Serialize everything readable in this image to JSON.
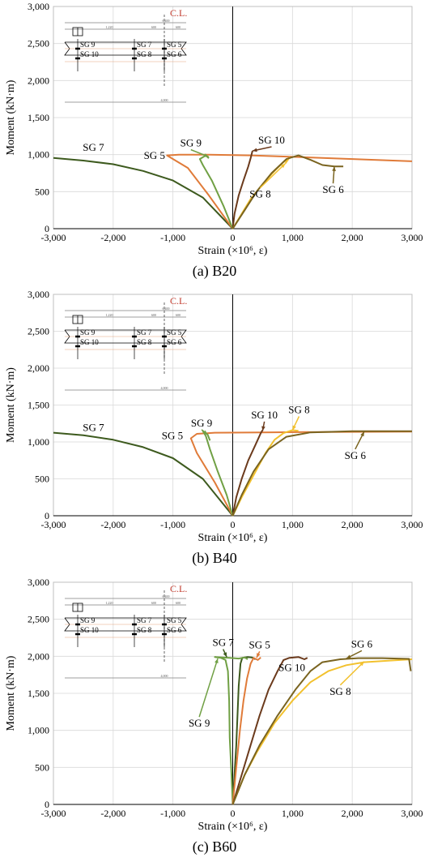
{
  "chart_data": [
    {
      "type": "line",
      "panel_label": "(a) B20",
      "xlabel": "Strain (×10⁶, ε)",
      "ylabel": "Moment (kN·m)",
      "xlim": [
        -3000,
        3000
      ],
      "ylim": [
        0,
        3000
      ],
      "xticks": [
        "-3,000",
        "-2,000",
        "-1,000",
        "0",
        "1,000",
        "2,000",
        "3,000"
      ],
      "yticks": [
        "0",
        "500",
        "1,000",
        "1,500",
        "2,000",
        "2,500",
        "3,000"
      ],
      "grid": true,
      "series": [
        {
          "name": "SG 7",
          "color": "#3d5a1e",
          "points": [
            [
              0,
              0
            ],
            [
              -500,
              420
            ],
            [
              -1000,
              650
            ],
            [
              -1500,
              780
            ],
            [
              -2000,
              870
            ],
            [
              -2500,
              920
            ],
            [
              -3000,
              955
            ]
          ]
        },
        {
          "name": "SG 5",
          "color": "#e07b39",
          "points": [
            [
              0,
              0
            ],
            [
              -400,
              450
            ],
            [
              -750,
              820
            ],
            [
              -1000,
              940
            ],
            [
              -1100,
              990
            ],
            [
              -900,
              1000
            ],
            [
              -400,
              1000
            ],
            [
              300,
              990
            ],
            [
              1000,
              970
            ],
            [
              2000,
              940
            ],
            [
              3000,
              910
            ]
          ]
        },
        {
          "name": "SG 9",
          "color": "#70a044",
          "points": [
            [
              0,
              0
            ],
            [
              -150,
              300
            ],
            [
              -350,
              650
            ],
            [
              -500,
              860
            ],
            [
              -550,
              940
            ],
            [
              -450,
              990
            ],
            [
              -400,
              950
            ]
          ]
        },
        {
          "name": "SG 10",
          "color": "#6b3a1c",
          "points": [
            [
              0,
              0
            ],
            [
              30,
              200
            ],
            [
              100,
              450
            ],
            [
              180,
              650
            ],
            [
              260,
              840
            ],
            [
              300,
              950
            ],
            [
              330,
              1050
            ]
          ]
        },
        {
          "name": "SG 8",
          "color": "#f2c12e",
          "points": [
            [
              0,
              0
            ],
            [
              150,
              200
            ],
            [
              300,
              400
            ],
            [
              500,
              600
            ],
            [
              700,
              780
            ],
            [
              850,
              900
            ],
            [
              950,
              960
            ],
            [
              880,
              880
            ]
          ]
        },
        {
          "name": "SG 6",
          "color": "#7a6420",
          "points": [
            [
              0,
              0
            ],
            [
              200,
              250
            ],
            [
              400,
              500
            ],
            [
              650,
              750
            ],
            [
              900,
              940
            ],
            [
              1100,
              990
            ],
            [
              1300,
              930
            ],
            [
              1500,
              860
            ],
            [
              1700,
              840
            ],
            [
              1850,
              840
            ]
          ]
        }
      ],
      "annotations": [
        "SG 9",
        "SG 10",
        "SG 5",
        "SG 7",
        "SG 8",
        "SG 6"
      ],
      "inset": {
        "title": "C.L.",
        "dims": [
          "6,400",
          "1,220",
          "600",
          "600",
          "4,000"
        ],
        "gauges": [
          "SG 9",
          "SG 10",
          "SG 7",
          "SG 8",
          "SG 5",
          "SG 6"
        ]
      }
    },
    {
      "type": "line",
      "panel_label": "(b) B40",
      "xlabel": "Strain (×10⁶, ε)",
      "ylabel": "Moment (kN·m)",
      "xlim": [
        -3000,
        3000
      ],
      "ylim": [
        0,
        3000
      ],
      "xticks": [
        "-3,000",
        "-2,000",
        "-1,000",
        "0",
        "1,000",
        "2,000",
        "3,000"
      ],
      "yticks": [
        "0",
        "500",
        "1,000",
        "1,500",
        "2,000",
        "2,500",
        "3,000"
      ],
      "grid": true,
      "series": [
        {
          "name": "SG 7",
          "color": "#3d5a1e",
          "points": [
            [
              0,
              0
            ],
            [
              -500,
              500
            ],
            [
              -1000,
              780
            ],
            [
              -1500,
              930
            ],
            [
              -2000,
              1030
            ],
            [
              -2500,
              1090
            ],
            [
              -3000,
              1125
            ]
          ]
        },
        {
          "name": "SG 5",
          "color": "#e07b39",
          "points": [
            [
              0,
              0
            ],
            [
              -300,
              450
            ],
            [
              -600,
              850
            ],
            [
              -700,
              1050
            ],
            [
              -600,
              1110
            ],
            [
              -300,
              1125
            ],
            [
              500,
              1130
            ],
            [
              1500,
              1135
            ],
            [
              3000,
              1140
            ]
          ]
        },
        {
          "name": "SG 9",
          "color": "#70a044",
          "points": [
            [
              0,
              0
            ],
            [
              -100,
              280
            ],
            [
              -250,
              600
            ],
            [
              -380,
              900
            ],
            [
              -450,
              1080
            ],
            [
              -500,
              1150
            ],
            [
              -420,
              1100
            ],
            [
              -380,
              1020
            ]
          ]
        },
        {
          "name": "SG 10",
          "color": "#6b3a1c",
          "points": [
            [
              0,
              0
            ],
            [
              60,
              250
            ],
            [
              150,
              500
            ],
            [
              260,
              750
            ],
            [
              380,
              960
            ],
            [
              470,
              1120
            ],
            [
              500,
              1160
            ]
          ]
        },
        {
          "name": "SG 8",
          "color": "#f2c12e",
          "points": [
            [
              0,
              0
            ],
            [
              150,
              250
            ],
            [
              350,
              550
            ],
            [
              550,
              850
            ],
            [
              700,
              1030
            ],
            [
              850,
              1120
            ],
            [
              1000,
              1160
            ],
            [
              1100,
              1150
            ]
          ]
        },
        {
          "name": "SG 6",
          "color": "#7a6420",
          "points": [
            [
              0,
              0
            ],
            [
              150,
              280
            ],
            [
              350,
              600
            ],
            [
              600,
              900
            ],
            [
              900,
              1070
            ],
            [
              1300,
              1130
            ],
            [
              2000,
              1145
            ],
            [
              3000,
              1145
            ]
          ]
        }
      ],
      "annotations": [
        "SG 9",
        "SG 10",
        "SG 8",
        "SG 7",
        "SG 5",
        "SG 6"
      ],
      "inset": {
        "title": "C.L.",
        "dims": [
          "6,400",
          "1,220",
          "600",
          "600",
          "4,000"
        ],
        "gauges": [
          "SG 9",
          "SG 10",
          "SG 7",
          "SG 8",
          "SG 5",
          "SG 6"
        ]
      }
    },
    {
      "type": "line",
      "panel_label": "(c) B60",
      "xlabel": "Strain (×10⁶, ε)",
      "ylabel": "Moment (kN·m)",
      "xlim": [
        -3000,
        3000
      ],
      "ylim": [
        0,
        3000
      ],
      "xticks": [
        "-3,000",
        "-2,000",
        "-1,000",
        "0",
        "1,000",
        "2,000",
        "3,000"
      ],
      "yticks": [
        "0",
        "500",
        "1,000",
        "1,500",
        "2,000",
        "2,500",
        "3,000"
      ],
      "grid": true,
      "series": [
        {
          "name": "SG 7",
          "color": "#3d5a1e",
          "points": [
            [
              0,
              0
            ],
            [
              30,
              400
            ],
            [
              60,
              800
            ],
            [
              80,
              1200
            ],
            [
              100,
              1600
            ],
            [
              130,
              1900
            ],
            [
              160,
              1980
            ],
            [
              250,
              1990
            ],
            [
              320,
              1985
            ],
            [
              380,
              1960
            ]
          ]
        },
        {
          "name": "SG 9",
          "color": "#70a044",
          "points": [
            [
              0,
              0
            ],
            [
              -20,
              400
            ],
            [
              -50,
              900
            ],
            [
              -60,
              1400
            ],
            [
              -80,
              1800
            ],
            [
              -120,
              1950
            ],
            [
              -200,
              1980
            ],
            [
              -300,
              1990
            ],
            [
              -50,
              1980
            ],
            [
              100,
              1970
            ],
            [
              200,
              1985
            ],
            [
              250,
              1960
            ]
          ]
        },
        {
          "name": "SG 5",
          "color": "#e07b39",
          "points": [
            [
              0,
              0
            ],
            [
              60,
              500
            ],
            [
              120,
              1000
            ],
            [
              180,
              1400
            ],
            [
              240,
              1700
            ],
            [
              300,
              1900
            ],
            [
              350,
              1980
            ],
            [
              420,
              1950
            ],
            [
              470,
              1985
            ]
          ]
        },
        {
          "name": "SG 10",
          "color": "#6b3a1c",
          "points": [
            [
              0,
              0
            ],
            [
              150,
              400
            ],
            [
              300,
              800
            ],
            [
              450,
              1200
            ],
            [
              600,
              1550
            ],
            [
              750,
              1800
            ],
            [
              850,
              1950
            ],
            [
              950,
              1980
            ],
            [
              1100,
              1990
            ],
            [
              1200,
              1960
            ],
            [
              1250,
              1980
            ]
          ]
        },
        {
          "name": "SG 8",
          "color": "#f2c12e",
          "points": [
            [
              0,
              0
            ],
            [
              200,
              400
            ],
            [
              400,
              700
            ],
            [
              700,
              1100
            ],
            [
              1000,
              1400
            ],
            [
              1300,
              1650
            ],
            [
              1600,
              1800
            ],
            [
              1900,
              1880
            ],
            [
              2200,
              1920
            ],
            [
              2600,
              1940
            ],
            [
              3000,
              1960
            ]
          ]
        },
        {
          "name": "SG 6",
          "color": "#7a6420",
          "points": [
            [
              0,
              0
            ],
            [
              200,
              400
            ],
            [
              450,
              800
            ],
            [
              750,
              1200
            ],
            [
              1050,
              1550
            ],
            [
              1300,
              1800
            ],
            [
              1500,
              1920
            ],
            [
              1800,
              1960
            ],
            [
              2100,
              1975
            ],
            [
              2500,
              1975
            ],
            [
              2950,
              1965
            ],
            [
              2980,
              1800
            ]
          ]
        }
      ],
      "annotations": [
        "SG 7",
        "SG 5",
        "SG 10",
        "SG 6",
        "SG 9",
        "SG 8"
      ],
      "inset": {
        "title": "C.L.",
        "dims": [
          "6,400",
          "1,220",
          "600",
          "600",
          "4,000"
        ],
        "gauges": [
          "SG 9",
          "SG 10",
          "SG 7",
          "SG 8",
          "SG 5",
          "SG 6"
        ]
      }
    }
  ]
}
